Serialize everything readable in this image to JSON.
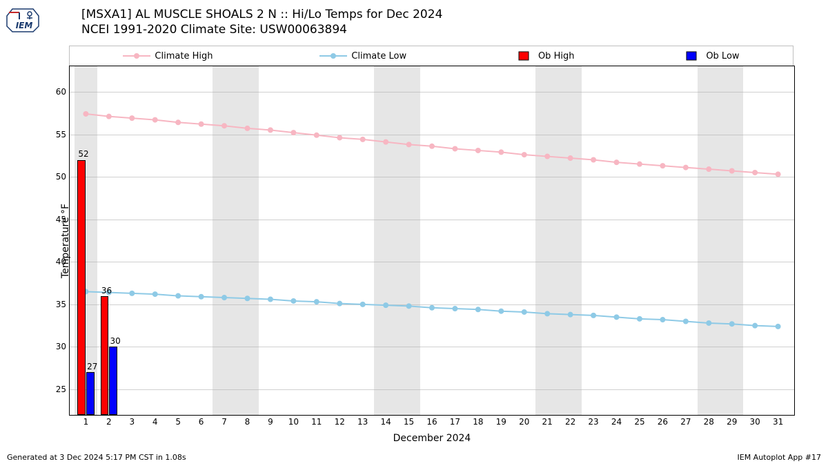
{
  "title": {
    "line1": "[MSXA1] AL MUSCLE SHOALS 2 N :: Hi/Lo Temps for Dec 2024",
    "line2": "NCEI 1991-2020 Climate Site: USW00063894"
  },
  "legend": {
    "climate_high": "Climate High",
    "climate_low": "Climate Low",
    "ob_high": "Ob High",
    "ob_low": "Ob Low"
  },
  "chart": {
    "type": "line+bar",
    "xlabel": "December 2024",
    "ylabel": "Temperature °F",
    "xlim": [
      0.3,
      31.7
    ],
    "ylim": [
      22,
      63
    ],
    "yticks": [
      25,
      30,
      35,
      40,
      45,
      50,
      55,
      60
    ],
    "xticks": [
      1,
      2,
      3,
      4,
      5,
      6,
      7,
      8,
      9,
      10,
      11,
      12,
      13,
      14,
      15,
      16,
      17,
      18,
      19,
      20,
      21,
      22,
      23,
      24,
      25,
      26,
      27,
      28,
      29,
      30,
      31
    ],
    "grid_color": "#b0b0b0",
    "background_color": "#ffffff",
    "weekend_band_color": "#e6e6e6",
    "weekend_day_indices": [
      1,
      7,
      8,
      14,
      15,
      21,
      22,
      28,
      29
    ],
    "climate_high": {
      "color": "#f7b6c2",
      "marker_size": 4,
      "values": [
        57.4,
        57.1,
        56.9,
        56.7,
        56.4,
        56.2,
        56.0,
        55.7,
        55.5,
        55.2,
        54.9,
        54.6,
        54.4,
        54.1,
        53.8,
        53.6,
        53.3,
        53.1,
        52.9,
        52.6,
        52.4,
        52.2,
        52.0,
        51.7,
        51.5,
        51.3,
        51.1,
        50.9,
        50.7,
        50.5,
        50.3
      ]
    },
    "climate_low": {
      "color": "#8ecae6",
      "marker_size": 4,
      "values": [
        36.5,
        36.4,
        36.3,
        36.2,
        36.0,
        35.9,
        35.8,
        35.7,
        35.6,
        35.4,
        35.3,
        35.1,
        35.0,
        34.9,
        34.8,
        34.6,
        34.5,
        34.4,
        34.2,
        34.1,
        33.9,
        33.8,
        33.7,
        33.5,
        33.3,
        33.2,
        33.0,
        32.8,
        32.7,
        32.5,
        32.4
      ]
    },
    "ob_high": {
      "color": "#ff0000",
      "border_color": "#000000",
      "bar_width": 0.35,
      "days": [
        1,
        2
      ],
      "values": [
        52,
        36
      ]
    },
    "ob_low": {
      "color": "#0000ff",
      "border_color": "#000000",
      "bar_width": 0.35,
      "days": [
        1,
        2
      ],
      "values": [
        27,
        30
      ]
    }
  },
  "footer": {
    "left": "Generated at 3 Dec 2024 5:17 PM CST in 1.08s",
    "right": "IEM Autoplot App #17"
  },
  "logo": {
    "text": "IEM",
    "stroke": "#1a3a6e",
    "accent": "#c62828"
  }
}
